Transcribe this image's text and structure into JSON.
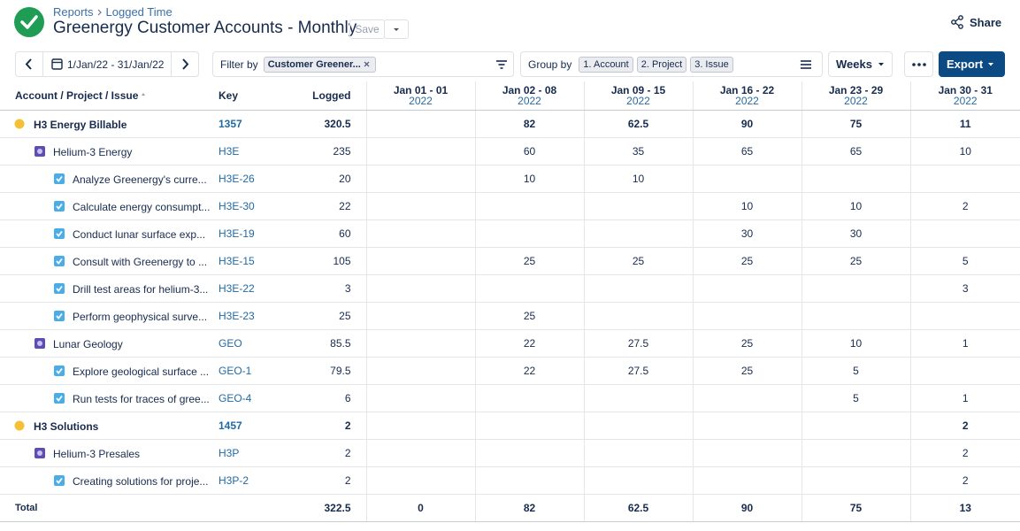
{
  "header": {
    "breadcrumb": [
      "Reports",
      "Logged Time"
    ],
    "title": "Greenergy Customer Accounts - Monthly",
    "save": "Save",
    "share": "Share"
  },
  "toolbar": {
    "date_range": "1/Jan/22 - 31/Jan/22",
    "filter_label": "Filter by",
    "filter_chip": "Customer Greener...",
    "group_label": "Group by",
    "group_chips": [
      "1. Account",
      "2. Project",
      "3. Issue"
    ],
    "period": "Weeks",
    "export": "Export"
  },
  "table": {
    "columns": [
      "Account / Project / Issue",
      "Key",
      "Logged"
    ],
    "weeks": [
      {
        "range": "Jan 01 - 01",
        "year": "2022"
      },
      {
        "range": "Jan 02 - 08",
        "year": "2022"
      },
      {
        "range": "Jan 09 - 15",
        "year": "2022"
      },
      {
        "range": "Jan 16 - 22",
        "year": "2022"
      },
      {
        "range": "Jan 23 - 29",
        "year": "2022"
      },
      {
        "range": "Jan 30 - 31",
        "year": "2022"
      }
    ],
    "accounts": [
      {
        "name": "H3 Energy Billable",
        "key": "1357",
        "logged": 320.5,
        "weeks": [
          null,
          82,
          62.5,
          90,
          75,
          11
        ],
        "projects": [
          {
            "name": "Helium-3 Energy",
            "key": "H3E",
            "logged": 235,
            "weeks": [
              null,
              60,
              35,
              65,
              65,
              10
            ],
            "issues": [
              {
                "name": "Analyze Greenergy's curre...",
                "key": "H3E-26",
                "logged": 20,
                "weeks": [
                  null,
                  10,
                  10,
                  null,
                  null,
                  null
                ]
              },
              {
                "name": "Calculate energy consumpt...",
                "key": "H3E-30",
                "logged": 22,
                "weeks": [
                  null,
                  null,
                  null,
                  10,
                  10,
                  2
                ]
              },
              {
                "name": "Conduct lunar surface exp...",
                "key": "H3E-19",
                "logged": 60,
                "weeks": [
                  null,
                  null,
                  null,
                  30,
                  30,
                  null
                ]
              },
              {
                "name": "Consult with Greenergy to ...",
                "key": "H3E-15",
                "logged": 105,
                "weeks": [
                  null,
                  25,
                  25,
                  25,
                  25,
                  5
                ]
              },
              {
                "name": "Drill test areas for helium-3...",
                "key": "H3E-22",
                "logged": 3,
                "weeks": [
                  null,
                  null,
                  null,
                  null,
                  null,
                  3
                ]
              },
              {
                "name": "Perform geophysical surve...",
                "key": "H3E-23",
                "logged": 25,
                "weeks": [
                  null,
                  25,
                  null,
                  null,
                  null,
                  null
                ]
              }
            ]
          },
          {
            "name": "Lunar Geology",
            "key": "GEO",
            "logged": 85.5,
            "weeks": [
              null,
              22,
              27.5,
              25,
              10,
              1
            ],
            "issues": [
              {
                "name": "Explore geological surface ...",
                "key": "GEO-1",
                "logged": 79.5,
                "weeks": [
                  null,
                  22,
                  27.5,
                  25,
                  5,
                  null
                ]
              },
              {
                "name": "Run tests for traces of gree...",
                "key": "GEO-4",
                "logged": 6,
                "weeks": [
                  null,
                  null,
                  null,
                  null,
                  5,
                  1
                ]
              }
            ]
          }
        ]
      },
      {
        "name": "H3 Solutions",
        "key": "1457",
        "logged": 2,
        "weeks": [
          null,
          null,
          null,
          null,
          null,
          2
        ],
        "projects": [
          {
            "name": "Helium-3 Presales",
            "key": "H3P",
            "logged": 2,
            "weeks": [
              null,
              null,
              null,
              null,
              null,
              2
            ],
            "issues": [
              {
                "name": "Creating solutions for proje...",
                "key": "H3P-2",
                "logged": 2,
                "weeks": [
                  null,
                  null,
                  null,
                  null,
                  null,
                  2
                ]
              }
            ]
          }
        ]
      }
    ],
    "total": {
      "label": "Total",
      "logged": 322.5,
      "weeks": [
        0,
        82,
        62.5,
        90,
        75,
        13
      ]
    }
  }
}
